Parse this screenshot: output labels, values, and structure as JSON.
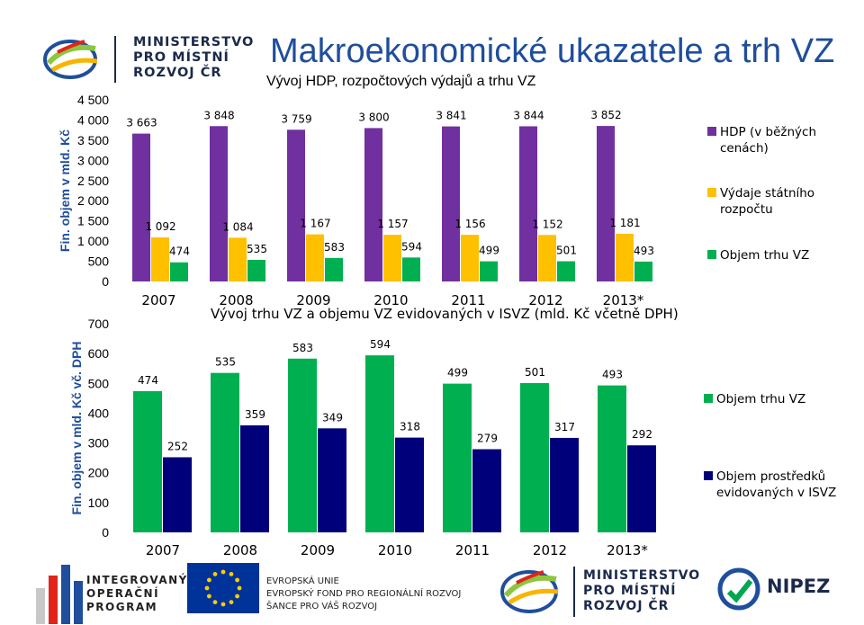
{
  "header": {
    "ministry_lines": [
      "MINISTERSTVO",
      "PRO MÍSTNÍ",
      "ROZVOJ ČR"
    ],
    "title": "Makroekonomické ukazatele a trh VZ"
  },
  "chart_data": [
    {
      "type": "bar",
      "title": "Vývoj HDP, rozpočtových výdajů a trhu VZ",
      "ylabel": "Fin. objem v mld. Kč",
      "categories": [
        "2007",
        "2008",
        "2009",
        "2010",
        "2011",
        "2012",
        "2013*"
      ],
      "ylim": [
        0,
        4500
      ],
      "yticks": [
        "4 500",
        "4 000",
        "3 500",
        "3 000",
        "2 500",
        "2 000",
        "1 500",
        "1 000",
        "500",
        "0"
      ],
      "ytick_values": [
        4500,
        4000,
        3500,
        3000,
        2500,
        2000,
        1500,
        1000,
        500,
        0
      ],
      "legend_position": "right",
      "series": [
        {
          "name": "HDP (v běžných cenách)",
          "legend_lines": [
            "HDP (v běžných",
            "cenách)"
          ],
          "color": "#7030a0",
          "values": [
            3663,
            3848,
            3759,
            3800,
            3841,
            3844,
            3852
          ],
          "labels": [
            "3 663",
            "3 848",
            "3 759",
            "3 800",
            "3 841",
            "3 844",
            "3 852"
          ]
        },
        {
          "name": "Výdaje státního rozpočtu",
          "legend_lines": [
            "Výdaje státního",
            "rozpočtu"
          ],
          "color": "#ffc000",
          "values": [
            1092,
            1084,
            1167,
            1157,
            1156,
            1152,
            1181
          ],
          "labels": [
            "1 092",
            "1 084",
            "1 167",
            "1 157",
            "1 156",
            "1 152",
            "1 181"
          ]
        },
        {
          "name": "Objem trhu VZ",
          "legend_lines": [
            "Objem trhu VZ"
          ],
          "color": "#00b050",
          "values": [
            474,
            535,
            583,
            594,
            499,
            501,
            493
          ],
          "labels": [
            "474",
            "535",
            "583",
            "594",
            "499",
            "501",
            "493"
          ]
        }
      ]
    },
    {
      "type": "bar",
      "title": "Vývoj trhu VZ a objemu VZ evidovaných v ISVZ (mld. Kč včetně DPH)",
      "ylabel": "Fin. objem v mld. Kč vč. DPH",
      "categories": [
        "2007",
        "2008",
        "2009",
        "2010",
        "2011",
        "2012",
        "2013*"
      ],
      "ylim": [
        0,
        700
      ],
      "yticks": [
        "700",
        "600",
        "500",
        "400",
        "300",
        "200",
        "100",
        "0"
      ],
      "ytick_values": [
        700,
        600,
        500,
        400,
        300,
        200,
        100,
        0
      ],
      "legend_position": "right",
      "series": [
        {
          "name": "Objem trhu VZ",
          "legend_lines": [
            "Objem trhu VZ"
          ],
          "color": "#00b050",
          "values": [
            474,
            535,
            583,
            594,
            499,
            501,
            493
          ],
          "labels": [
            "474",
            "535",
            "583",
            "594",
            "499",
            "501",
            "493"
          ]
        },
        {
          "name": "Objem prostředků evidovaných v ISVZ",
          "legend_lines": [
            "Objem prostředků",
            "evidovaných v ISVZ"
          ],
          "color": "#00007a",
          "values": [
            252,
            359,
            349,
            318,
            279,
            317,
            292
          ],
          "labels": [
            "252",
            "359",
            "349",
            "318",
            "279",
            "317",
            "292"
          ]
        }
      ]
    }
  ],
  "footer": {
    "iop_lines": [
      "INTEGROVANÝ",
      "OPERAČNÍ",
      "PROGRAM"
    ],
    "eu_lines": [
      "EVROPSKÁ UNIE",
      "EVROPSKÝ FOND PRO REGIONÁLNÍ ROZVOJ",
      "ŠANCE PRO VÁŠ ROZVOJ"
    ],
    "ministry_lines": [
      "MINISTERSTVO",
      "PRO MÍSTNÍ",
      "ROZVOJ ČR"
    ],
    "nipez_text": "NIPEZ"
  }
}
